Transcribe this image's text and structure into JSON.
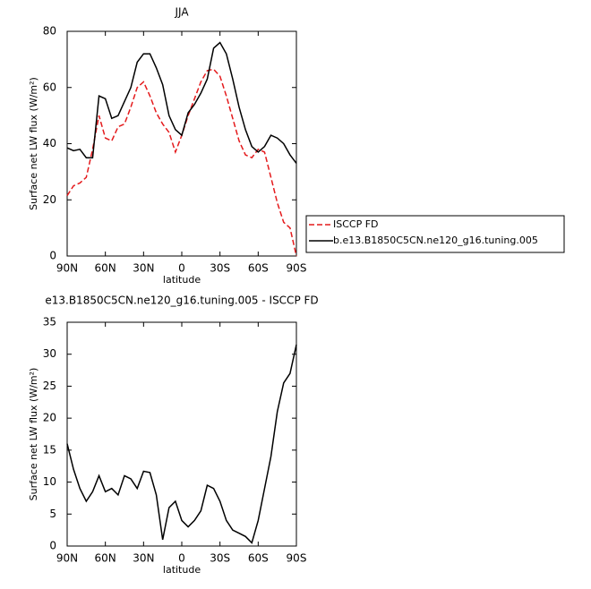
{
  "chart_data": [
    {
      "type": "line",
      "title": "JJA",
      "xlabel": "latitude",
      "ylabel": "Surface net LW flux (W/m²)",
      "x": [
        90,
        85,
        80,
        75,
        70,
        65,
        60,
        55,
        50,
        45,
        40,
        35,
        30,
        25,
        20,
        15,
        10,
        5,
        0,
        -5,
        -10,
        -15,
        -20,
        -25,
        -30,
        -35,
        -40,
        -45,
        -50,
        -55,
        -60,
        -65,
        -70,
        -75,
        -80,
        -85,
        -90
      ],
      "series": [
        {
          "name": "ISCCP FD",
          "color": "#e41a1c",
          "dash": "dashed",
          "values": [
            21.5,
            25,
            26,
            28,
            38,
            50,
            42,
            41,
            46,
            47,
            53,
            60,
            62,
            57,
            51,
            47,
            44,
            37,
            43,
            50,
            56,
            62,
            66,
            66.5,
            64,
            57,
            49,
            41,
            36,
            35,
            38,
            37,
            28,
            19,
            12,
            10,
            0
          ]
        },
        {
          "name": "b.e13.B1850C5CN.ne120_g16.tuning.005",
          "color": "#000000",
          "dash": "solid",
          "values": [
            38.5,
            37.5,
            38,
            35,
            35,
            57,
            56,
            49,
            50,
            55,
            60,
            69,
            72,
            72,
            67,
            61,
            50,
            45,
            43,
            51,
            54,
            58,
            63,
            74,
            76,
            72,
            63,
            53,
            45,
            39,
            37,
            39,
            43,
            42,
            40,
            36,
            33
          ]
        }
      ],
      "xlim": [
        90,
        -90
      ],
      "xticks": [
        {
          "value": 90,
          "label": "90N"
        },
        {
          "value": 60,
          "label": "60N"
        },
        {
          "value": 30,
          "label": "30N"
        },
        0,
        {
          "value": -30,
          "label": "30S"
        },
        {
          "value": -60,
          "label": "60S"
        },
        {
          "value": -90,
          "label": "90S"
        }
      ],
      "ylim": [
        0,
        80
      ],
      "yticks": [
        0,
        20,
        40,
        60,
        80
      ],
      "legend": "outside right"
    },
    {
      "type": "line",
      "title": "e13.B1850C5CN.ne120_g16.tuning.005 - ISCCP FD",
      "xlabel": "latitude",
      "ylabel": "Surface net LW flux (W/m²)",
      "x": [
        90,
        85,
        80,
        75,
        70,
        65,
        60,
        55,
        50,
        45,
        40,
        35,
        30,
        25,
        20,
        15,
        10,
        5,
        0,
        -5,
        -10,
        -15,
        -20,
        -25,
        -30,
        -35,
        -40,
        -45,
        -50,
        -55,
        -60,
        -65,
        -70,
        -75,
        -80,
        -85,
        -90
      ],
      "series": [
        {
          "color": "#000000",
          "dash": "solid",
          "values": [
            16,
            12,
            9,
            7,
            8.5,
            11,
            8.5,
            9,
            8,
            11,
            10.5,
            9,
            11.7,
            11.5,
            8,
            1,
            6,
            7,
            4,
            3,
            4,
            5.5,
            9.5,
            9,
            7,
            4,
            2.5,
            2,
            1.5,
            0.5,
            4,
            9,
            14,
            21,
            25.5,
            27,
            31.5
          ]
        }
      ],
      "xlim": [
        90,
        -90
      ],
      "xticks": [
        {
          "value": 90,
          "label": "90N"
        },
        {
          "value": 60,
          "label": "60N"
        },
        {
          "value": 30,
          "label": "30N"
        },
        0,
        {
          "value": -30,
          "label": "30S"
        },
        {
          "value": -60,
          "label": "60S"
        },
        {
          "value": -90,
          "label": "90S"
        }
      ],
      "ylim": [
        0,
        35
      ],
      "yticks": [
        0,
        5,
        10,
        15,
        20,
        25,
        30,
        35
      ]
    }
  ]
}
